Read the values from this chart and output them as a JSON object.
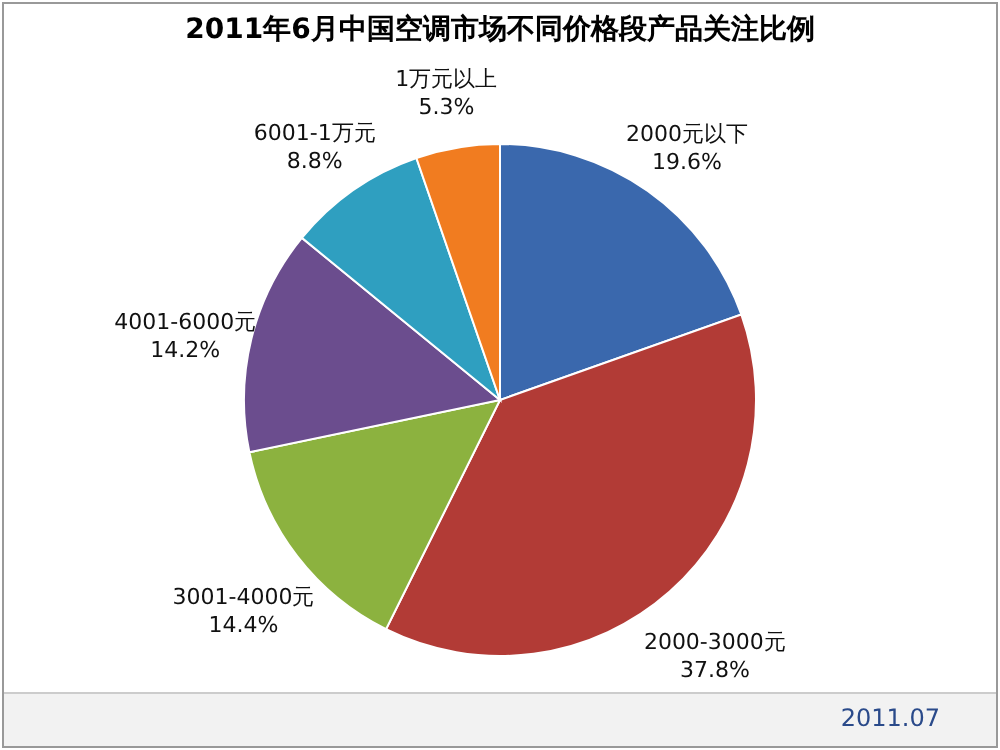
{
  "chart_data": {
    "type": "pie",
    "title": "2011年6月中国空调市场不同价格段产品关注比例",
    "categories": [
      "2000元以下",
      "2000-3000元",
      "3001-4000元",
      "4001-6000元",
      "6001-1万元",
      "1万元以上"
    ],
    "values": [
      19.6,
      37.8,
      14.4,
      14.2,
      8.8,
      5.3
    ],
    "value_labels": [
      "19.6%",
      "37.8%",
      "14.4%",
      "14.2%",
      "8.8%",
      "5.3%"
    ],
    "colors": [
      "#3a68ad",
      "#b23b36",
      "#8cb23f",
      "#6b4d8e",
      "#2f9fc0",
      "#f17c20"
    ],
    "legend": false,
    "annotations": [
      "2011.07"
    ]
  }
}
